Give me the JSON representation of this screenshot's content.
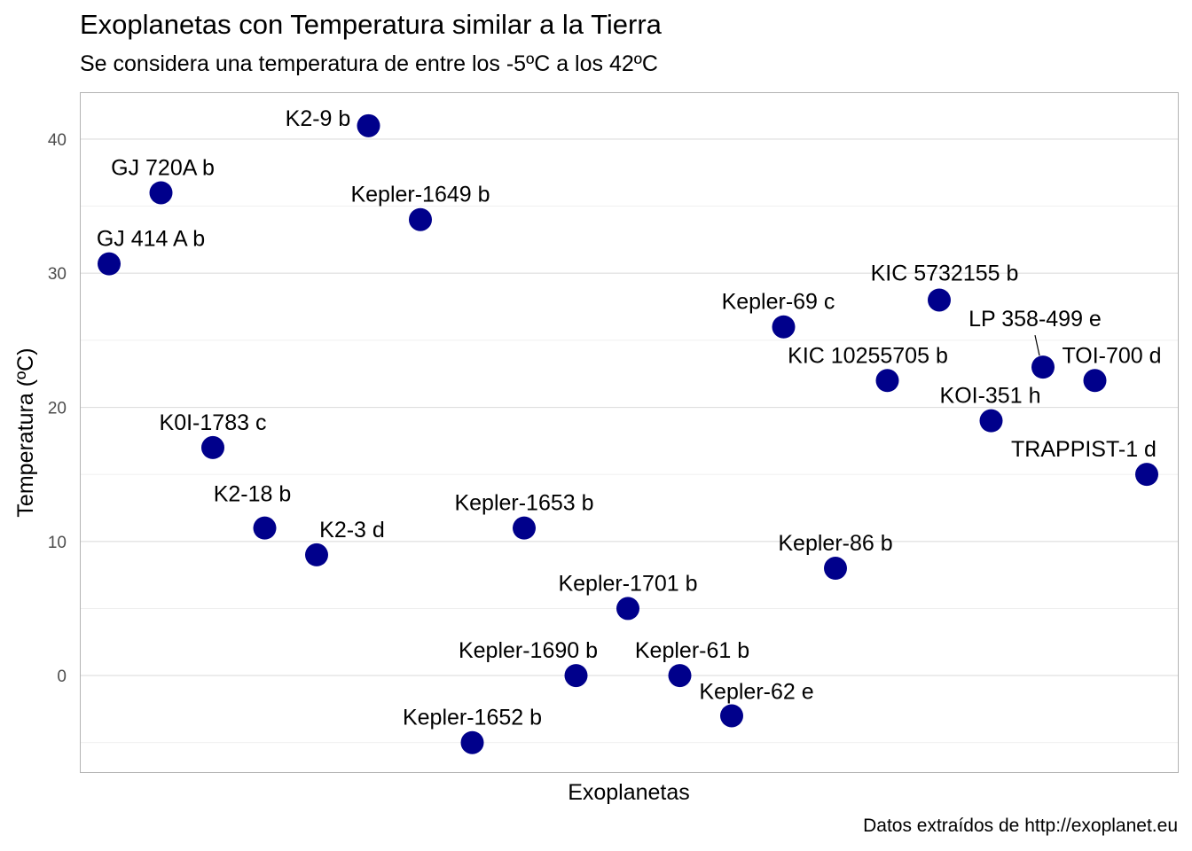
{
  "chart_data": {
    "type": "scatter",
    "title": "Exoplanetas con Temperatura similar a la Tierra",
    "subtitle": "Se considera una temperatura de entre los -5ºC a los 42ºC",
    "xlabel": "Exoplanetas",
    "ylabel": "Temperatura (ºC)",
    "caption": "Datos extraídos de http://exoplanet.eu",
    "ylim": [
      -7.2,
      43.5
    ],
    "yticks": [
      0,
      10,
      20,
      30,
      40
    ],
    "grid": true,
    "legend": "none",
    "point_color": "#00008B",
    "points": [
      {
        "name": "GJ 414 A b",
        "y": 30.7
      },
      {
        "name": "GJ 720A b",
        "y": 36
      },
      {
        "name": "K0I-1783 c",
        "y": 17
      },
      {
        "name": "K2-18 b",
        "y": 11
      },
      {
        "name": "K2-3 d",
        "y": 9
      },
      {
        "name": "K2-9 b",
        "y": 41
      },
      {
        "name": "Kepler-1649 b",
        "y": 34
      },
      {
        "name": "Kepler-1652 b",
        "y": -5
      },
      {
        "name": "Kepler-1653 b",
        "y": 11
      },
      {
        "name": "Kepler-1690 b",
        "y": 0
      },
      {
        "name": "Kepler-1701 b",
        "y": 5
      },
      {
        "name": "Kepler-61 b",
        "y": 0
      },
      {
        "name": "Kepler-62 e",
        "y": -3
      },
      {
        "name": "Kepler-69 c",
        "y": 26
      },
      {
        "name": "Kepler-86 b",
        "y": 8
      },
      {
        "name": "KIC 10255705 b",
        "y": 22
      },
      {
        "name": "KIC 5732155 b",
        "y": 28
      },
      {
        "name": "KOI-351 h",
        "y": 19
      },
      {
        "name": "LP 358-499 e",
        "y": 23
      },
      {
        "name": "TOI-700 d",
        "y": 22
      },
      {
        "name": "TRAPPIST-1 d",
        "y": 15
      }
    ]
  }
}
